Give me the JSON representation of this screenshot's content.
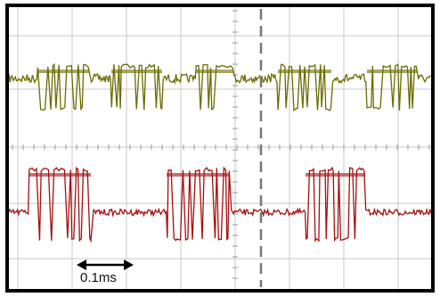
{
  "scale_label": "0.1ms"
}
